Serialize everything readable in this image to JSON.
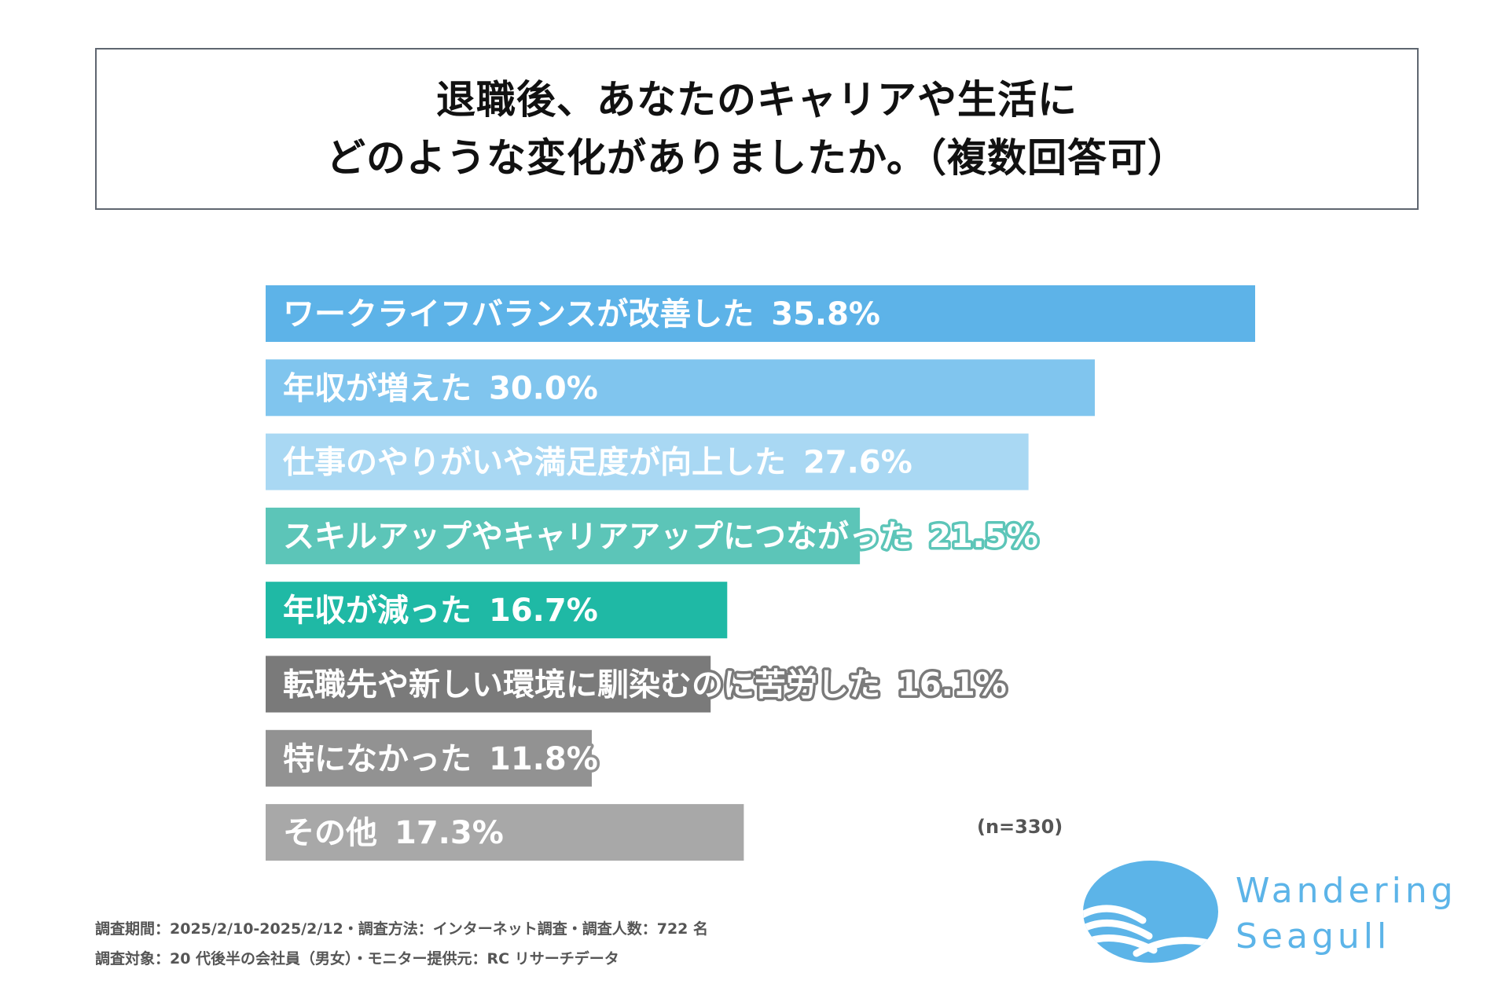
{
  "title": {
    "line1": "退職後、あなたのキャリアや生活に",
    "line2": "どのような変化がありましたか。（複数回答可）"
  },
  "chart_data": {
    "type": "bar",
    "orientation": "horizontal",
    "unit": "%",
    "categories": [
      "ワークライフバランスが改善した",
      "年収が増えた",
      "仕事のやりがいや満足度が向上した",
      "スキルアップやキャリアアップにつながった",
      "年収が減った",
      "転職先や新しい環境に馴染むのに苦労した",
      "特になかった",
      "その他"
    ],
    "values": [
      35.8,
      30.0,
      27.6,
      21.5,
      16.7,
      16.1,
      11.8,
      17.3
    ],
    "value_labels": [
      "35.8%",
      "30.0%",
      "27.6%",
      "21.5%",
      "16.7%",
      "16.1%",
      "11.8%",
      "17.3%"
    ],
    "colors": [
      "#5db3e8",
      "#80c5ee",
      "#a9d8f3",
      "#5cc5b8",
      "#1fb9a5",
      "#7a7a7a",
      "#929292",
      "#a8a8a8"
    ],
    "xlim": [
      0,
      35.8
    ],
    "note": "(n=330)"
  },
  "footer": {
    "line1": "調査期間：2025/2/10-2025/2/12・調査方法：インターネット調査・調査人数：722 名",
    "line2": "調査対象：20 代後半の会社員（男女）・モニター提供元：RC リサーチデータ"
  },
  "brand": {
    "line1": "Wandering",
    "line2": "Seagull",
    "color": "#5cb4e8"
  }
}
